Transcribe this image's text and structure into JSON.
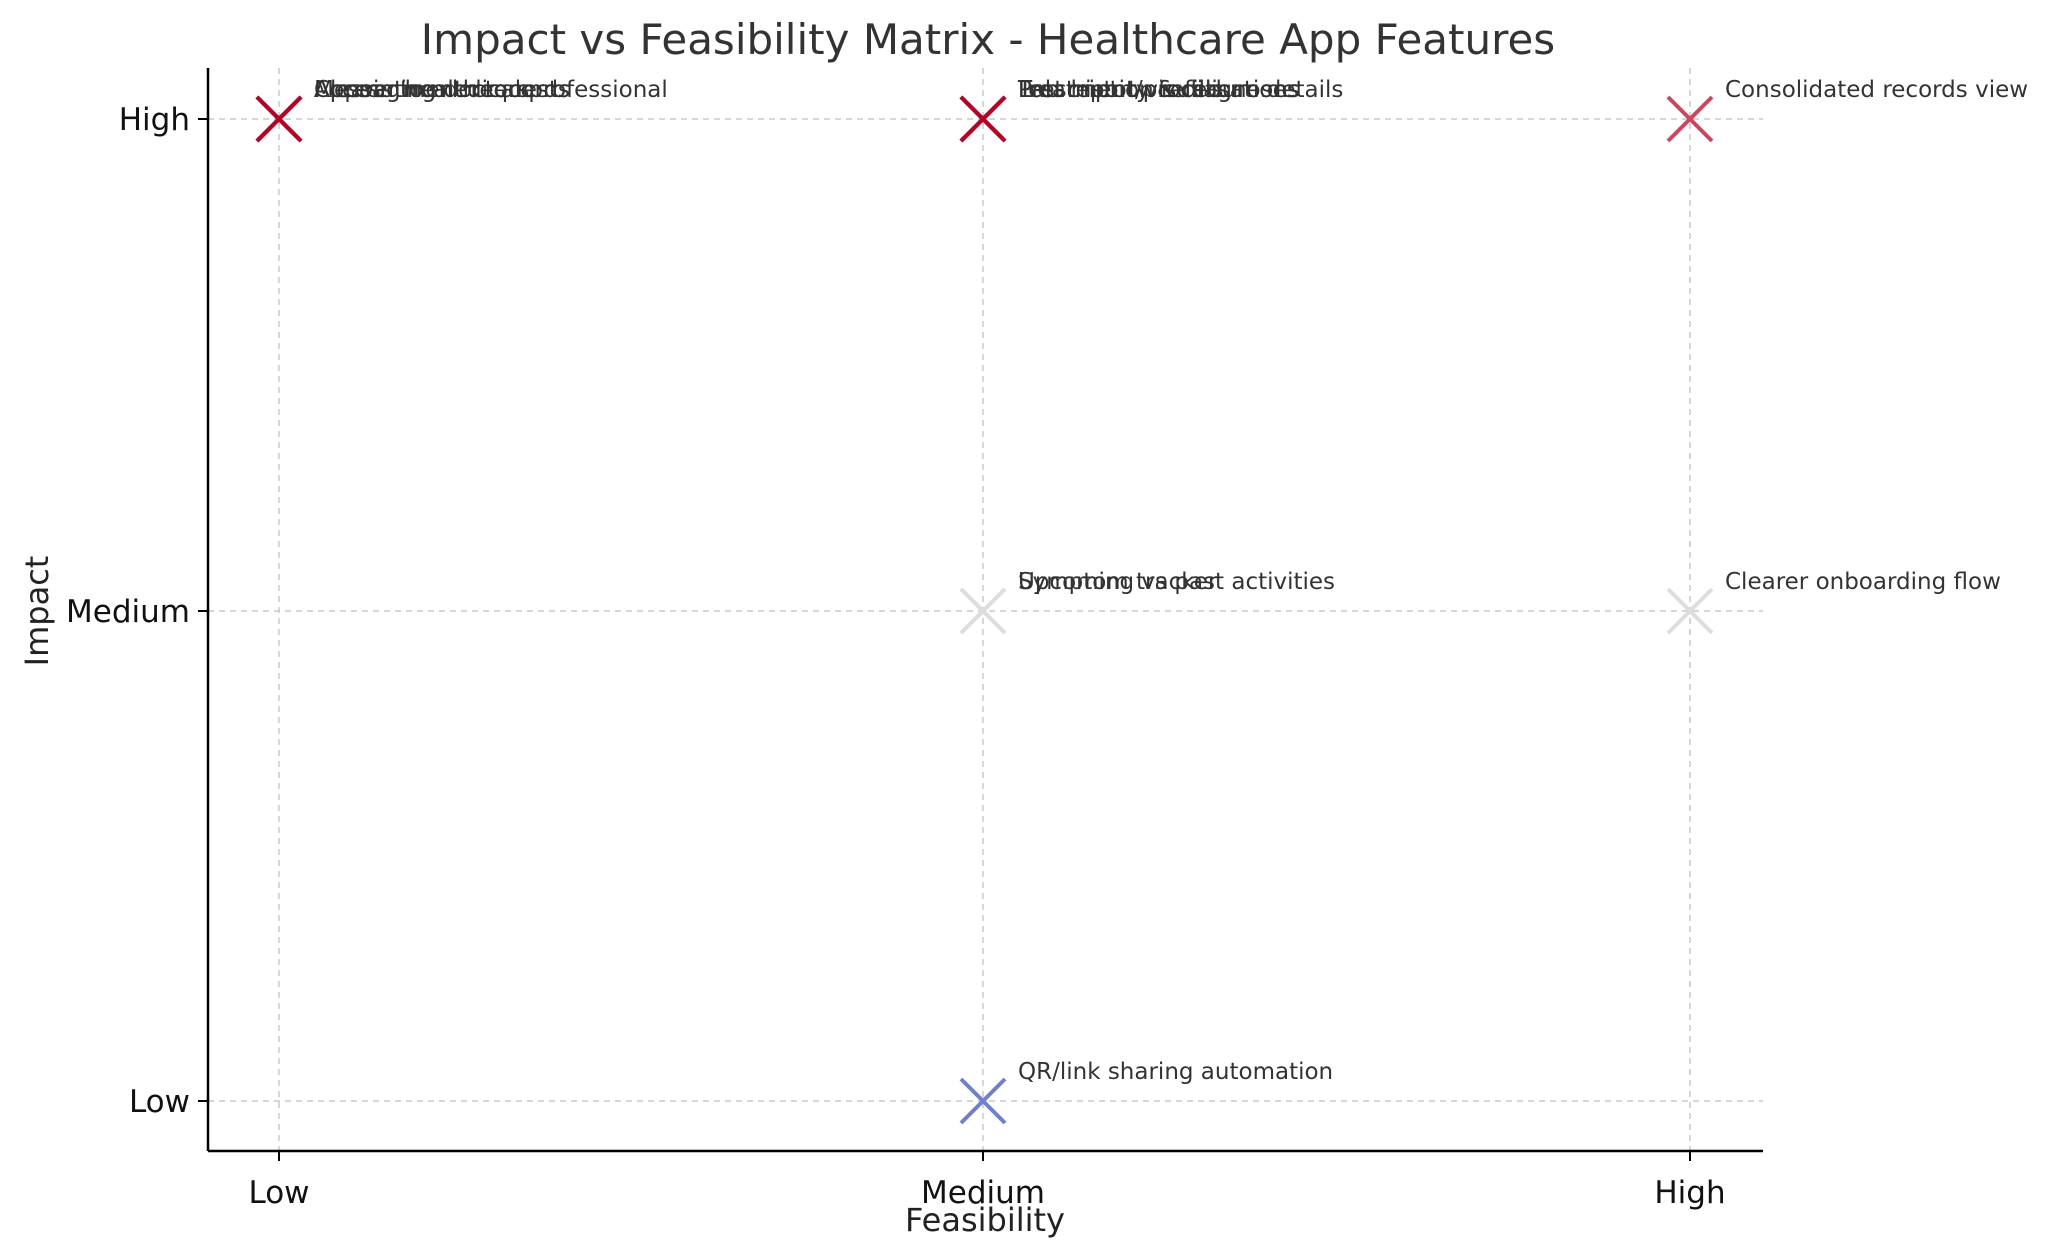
{
  "chart_data": {
    "type": "scatter",
    "title": "Impact vs Feasibility Matrix - Healthcare App Features",
    "xlabel": "Feasibility",
    "ylabel": "Impact",
    "x_categories": [
      "Low",
      "Medium",
      "High"
    ],
    "y_categories": [
      "Low",
      "Medium",
      "High"
    ],
    "grid": true,
    "marker": "x",
    "points": [
      {
        "label": "Appointment requests",
        "x": "Low",
        "y": "High",
        "color": "#b40426"
      },
      {
        "label": "Access to medical professional",
        "x": "Low",
        "y": "High",
        "color": "#b40426"
      },
      {
        "label": "Messaging doctors",
        "x": "Low",
        "y": "High",
        "color": "#b40426"
      },
      {
        "label": "Clearer health records",
        "x": "Low",
        "y": "High",
        "color": "#b40426"
      },
      {
        "label": "Test history & diagnoses",
        "x": "Medium",
        "y": "High",
        "color": "#b40426"
      },
      {
        "label": "Treatment/procedure details",
        "x": "Medium",
        "y": "High",
        "color": "#b40426"
      },
      {
        "label": "Prescription refills",
        "x": "Medium",
        "y": "High",
        "color": "#b40426"
      },
      {
        "label": "Lab report visualisations",
        "x": "Medium",
        "y": "High",
        "color": "#b40426"
      },
      {
        "label": "Consolidated records view",
        "x": "High",
        "y": "High",
        "color": "#c9485f"
      },
      {
        "label": "Symptom tracker",
        "x": "Medium",
        "y": "Medium",
        "color": "#dddddd"
      },
      {
        "label": "Upcoming vs past activities",
        "x": "Medium",
        "y": "Medium",
        "color": "#dddddd"
      },
      {
        "label": "Clearer onboarding flow",
        "x": "High",
        "y": "Medium",
        "color": "#dddddd"
      },
      {
        "label": "QR/link sharing automation",
        "x": "Medium",
        "y": "Low",
        "color": "#7080cc"
      }
    ]
  }
}
